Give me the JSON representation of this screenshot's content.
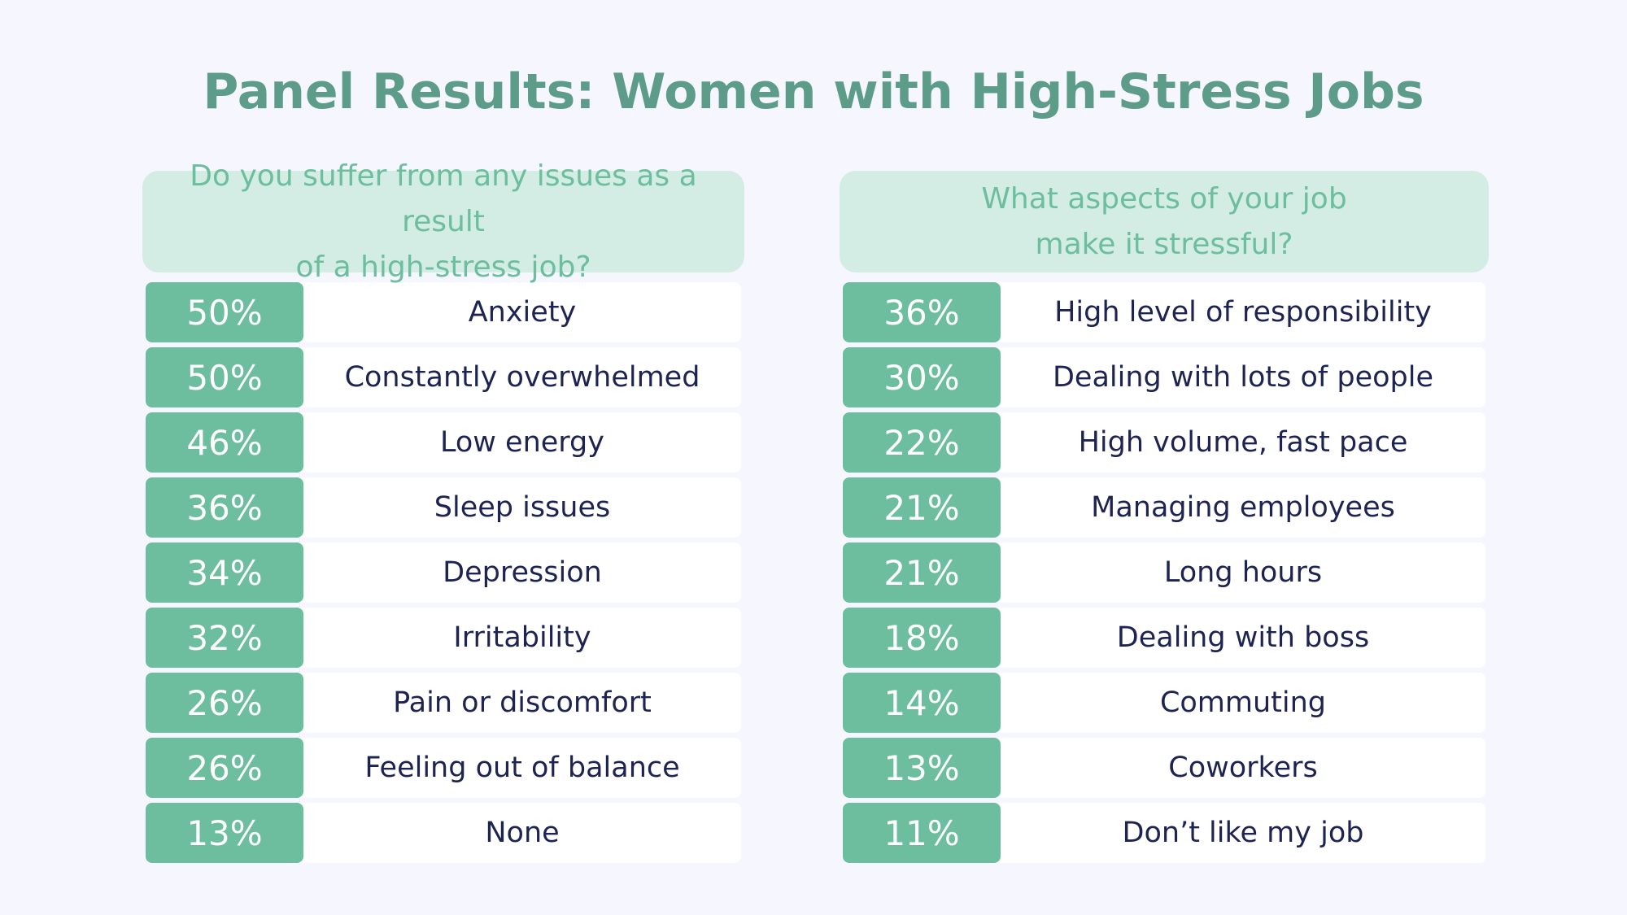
{
  "chart_data": {
    "type": "table",
    "title": "Panel Results: Women with High-Stress Jobs",
    "tables": [
      {
        "question": "Do you suffer from any issues as a result\nof a high-stress job?",
        "rows": [
          {
            "value": "50%",
            "label": "Anxiety"
          },
          {
            "value": "50%",
            "label": "Constantly overwhelmed"
          },
          {
            "value": "46%",
            "label": "Low energy"
          },
          {
            "value": "36%",
            "label": "Sleep issues"
          },
          {
            "value": "34%",
            "label": "Depression"
          },
          {
            "value": "32%",
            "label": "Irritability"
          },
          {
            "value": "26%",
            "label": "Pain or discomfort"
          },
          {
            "value": "26%",
            "label": "Feeling out of balance"
          },
          {
            "value": "13%",
            "label": "None"
          }
        ]
      },
      {
        "question": "What aspects of your job\nmake it stressful?",
        "rows": [
          {
            "value": "36%",
            "label": "High level of responsibility"
          },
          {
            "value": "30%",
            "label": "Dealing with lots of people"
          },
          {
            "value": "22%",
            "label": "High volume, fast pace"
          },
          {
            "value": "21%",
            "label": "Managing employees"
          },
          {
            "value": "21%",
            "label": "Long hours"
          },
          {
            "value": "18%",
            "label": "Dealing with boss"
          },
          {
            "value": "14%",
            "label": "Commuting"
          },
          {
            "value": "13%",
            "label": "Coworkers"
          },
          {
            "value": "11%",
            "label": "Don’t like my job"
          }
        ]
      }
    ]
  },
  "colors": {
    "background": "#f5f6fe",
    "title": "#5e9c8a",
    "accent": "#6cbe9e",
    "question_bg": "#d3ece4",
    "label_text": "#1e2452"
  }
}
